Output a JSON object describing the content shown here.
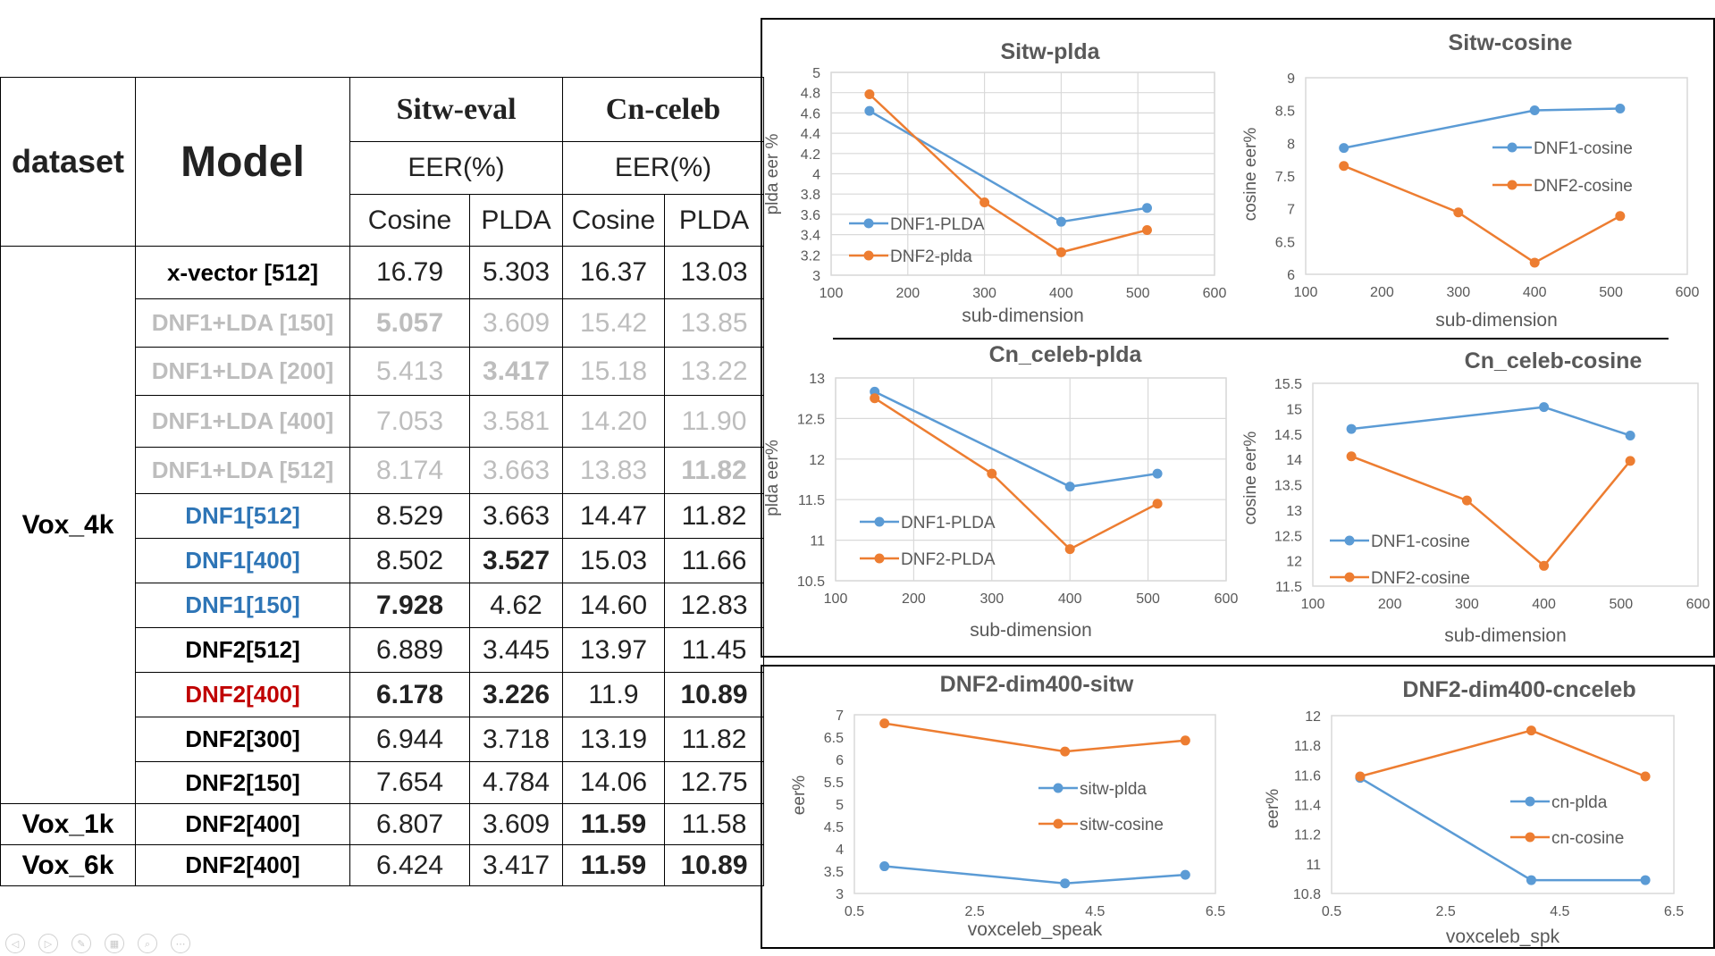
{
  "table": {
    "dataset_header": "dataset",
    "model_header": "Model",
    "groups": [
      "Sitw-eval",
      "Cn-celeb"
    ],
    "metric": "EER(%)",
    "subheaders": [
      "Cosine",
      "PLDA",
      "Cosine",
      "PLDA"
    ],
    "row_groups": [
      {
        "dataset": "Vox_4k",
        "rows": [
          {
            "model": "x-vector [512]",
            "values": [
              "16.79",
              "5.303",
              "16.37",
              "13.03"
            ],
            "style": "black",
            "bold": [
              false,
              false,
              false,
              false
            ]
          },
          {
            "model": "DNF1+LDA [150]",
            "values": [
              "5.057",
              "3.609",
              "15.42",
              "13.85"
            ],
            "style": "gray",
            "bold": [
              true,
              false,
              false,
              false
            ]
          },
          {
            "model": "DNF1+LDA [200]",
            "values": [
              "5.413",
              "3.417",
              "15.18",
              "13.22"
            ],
            "style": "gray",
            "bold": [
              false,
              true,
              false,
              false
            ]
          },
          {
            "model": "DNF1+LDA [400]",
            "values": [
              "7.053",
              "3.581",
              "14.20",
              "11.90"
            ],
            "style": "gray",
            "bold": [
              false,
              false,
              false,
              false
            ]
          },
          {
            "model": "DNF1+LDA [512]",
            "values": [
              "8.174",
              "3.663",
              "13.83",
              "11.82"
            ],
            "style": "gray",
            "bold": [
              false,
              false,
              false,
              true
            ]
          },
          {
            "model": "DNF1[512]",
            "values": [
              "8.529",
              "3.663",
              "14.47",
              "11.82"
            ],
            "style": "blue",
            "bold": [
              false,
              false,
              false,
              false
            ]
          },
          {
            "model": "DNF1[400]",
            "values": [
              "8.502",
              "3.527",
              "15.03",
              "11.66"
            ],
            "style": "blue",
            "bold": [
              false,
              true,
              false,
              false
            ]
          },
          {
            "model": "DNF1[150]",
            "values": [
              "7.928",
              "4.62",
              "14.60",
              "12.83"
            ],
            "style": "blue",
            "bold": [
              true,
              false,
              false,
              false
            ]
          },
          {
            "model": "DNF2[512]",
            "values": [
              "6.889",
              "3.445",
              "13.97",
              "11.45"
            ],
            "style": "black",
            "bold": [
              false,
              false,
              false,
              false
            ]
          },
          {
            "model": "DNF2[400]",
            "values": [
              "6.178",
              "3.226",
              "11.9",
              "10.89"
            ],
            "style": "red",
            "bold": [
              true,
              true,
              false,
              true
            ]
          },
          {
            "model": "DNF2[300]",
            "values": [
              "6.944",
              "3.718",
              "13.19",
              "11.82"
            ],
            "style": "black",
            "bold": [
              false,
              false,
              false,
              false
            ]
          },
          {
            "model": "DNF2[150]",
            "values": [
              "7.654",
              "4.784",
              "14.06",
              "12.75"
            ],
            "style": "black",
            "bold": [
              false,
              false,
              false,
              false
            ]
          }
        ]
      },
      {
        "dataset": "Vox_1k",
        "rows": [
          {
            "model": "DNF2[400]",
            "values": [
              "6.807",
              "3.609",
              "11.59",
              "11.58"
            ],
            "style": "black",
            "bold": [
              false,
              false,
              true,
              false
            ]
          }
        ]
      },
      {
        "dataset": "Vox_6k",
        "rows": [
          {
            "model": "DNF2[400]",
            "values": [
              "6.424",
              "3.417",
              "11.59",
              "10.89"
            ],
            "style": "black",
            "bold": [
              false,
              false,
              true,
              true
            ]
          }
        ]
      }
    ]
  },
  "colors": {
    "blue": "#5b9bd5",
    "orange": "#ed7d31",
    "text_blue": "#2e75b6",
    "text_red": "#c00000",
    "text_gray": "#bdbdbd"
  },
  "chart_data": [
    {
      "type": "line",
      "title": "Sitw-plda",
      "xlabel": "sub-dimension",
      "ylabel": "plda eer %",
      "xlim": [
        100,
        600
      ],
      "xticks": [
        100,
        200,
        300,
        400,
        500,
        600
      ],
      "ylim": [
        3,
        5
      ],
      "yticks": [
        "3",
        "3.2",
        "3.4",
        "3.6",
        "3.8",
        "4",
        "4.2",
        "4.4",
        "4.6",
        "4.8",
        "5"
      ],
      "grid": true,
      "legend_position": "bottom-left",
      "series": [
        {
          "name": "DNF1-PLDA",
          "color": "#5b9bd5",
          "x": [
            150,
            400,
            512
          ],
          "y": [
            4.62,
            3.527,
            3.663
          ]
        },
        {
          "name": "DNF2-plda",
          "color": "#ed7d31",
          "x": [
            150,
            300,
            400,
            512
          ],
          "y": [
            4.784,
            3.718,
            3.226,
            3.445
          ]
        }
      ]
    },
    {
      "type": "line",
      "title": "Sitw-cosine",
      "xlabel": "sub-dimension",
      "ylabel": "cosine eer%",
      "xlim": [
        100,
        600
      ],
      "xticks": [
        100,
        200,
        300,
        400,
        500,
        600
      ],
      "ylim": [
        6,
        9
      ],
      "yticks": [
        "6",
        "6.5",
        "7",
        "7.5",
        "8",
        "8.5",
        "9"
      ],
      "grid": false,
      "legend_position": "right",
      "series": [
        {
          "name": "DNF1-cosine",
          "color": "#5b9bd5",
          "x": [
            150,
            400,
            512
          ],
          "y": [
            7.928,
            8.502,
            8.529
          ]
        },
        {
          "name": "DNF2-cosine",
          "color": "#ed7d31",
          "x": [
            150,
            300,
            400,
            512
          ],
          "y": [
            7.654,
            6.944,
            6.178,
            6.889
          ]
        }
      ]
    },
    {
      "type": "line",
      "title": "Cn_celeb-plda",
      "xlabel": "sub-dimension",
      "ylabel": "plda eer%",
      "xlim": [
        100,
        600
      ],
      "xticks": [
        100,
        200,
        300,
        400,
        500,
        600
      ],
      "ylim": [
        10.5,
        13
      ],
      "yticks": [
        "10.5",
        "11",
        "11.5",
        "12",
        "12.5",
        "13"
      ],
      "grid": true,
      "legend_position": "bottom-left",
      "series": [
        {
          "name": "DNF1-PLDA",
          "color": "#5b9bd5",
          "x": [
            150,
            400,
            512
          ],
          "y": [
            12.83,
            11.66,
            11.82
          ]
        },
        {
          "name": "DNF2-PLDA",
          "color": "#ed7d31",
          "x": [
            150,
            300,
            400,
            512
          ],
          "y": [
            12.75,
            11.82,
            10.89,
            11.45
          ]
        }
      ]
    },
    {
      "type": "line",
      "title": "Cn_celeb-cosine",
      "xlabel": "sub-dimension",
      "ylabel": "cosine eer%",
      "xlim": [
        100,
        600
      ],
      "xticks": [
        100,
        200,
        300,
        400,
        500,
        600
      ],
      "ylim": [
        11.5,
        15.5
      ],
      "yticks": [
        "11.5",
        "12",
        "12.5",
        "13",
        "13.5",
        "14",
        "14.5",
        "15",
        "15.5"
      ],
      "grid": false,
      "legend_position": "bottom-left",
      "series": [
        {
          "name": "DNF1-cosine",
          "color": "#5b9bd5",
          "x": [
            150,
            400,
            512
          ],
          "y": [
            14.6,
            15.03,
            14.47
          ]
        },
        {
          "name": "DNF2-cosine",
          "color": "#ed7d31",
          "x": [
            150,
            300,
            400,
            512
          ],
          "y": [
            14.06,
            13.19,
            11.9,
            13.97
          ]
        }
      ]
    },
    {
      "type": "line",
      "title": "DNF2-dim400-sitw",
      "xlabel": "voxceleb_speak",
      "ylabel": "eer%",
      "xlim": [
        0.5,
        6.5
      ],
      "xticks": [
        "0.5",
        "2.5",
        "4.5",
        "6.5"
      ],
      "ylim": [
        3,
        7
      ],
      "yticks": [
        "3",
        "3.5",
        "4",
        "4.5",
        "5",
        "5.5",
        "6",
        "6.5",
        "7"
      ],
      "grid": false,
      "legend_position": "right",
      "series": [
        {
          "name": "sitw-plda",
          "color": "#5b9bd5",
          "x": [
            1,
            4,
            6
          ],
          "y": [
            3.609,
            3.226,
            3.417
          ]
        },
        {
          "name": "sitw-cosine",
          "color": "#ed7d31",
          "x": [
            1,
            4,
            6
          ],
          "y": [
            6.807,
            6.178,
            6.424
          ]
        }
      ]
    },
    {
      "type": "line",
      "title": "DNF2-dim400-cnceleb",
      "xlabel": "voxceleb_spk",
      "ylabel": "eer%",
      "xlim": [
        0.5,
        6.5
      ],
      "xticks": [
        "0.5",
        "2.5",
        "4.5",
        "6.5"
      ],
      "ylim": [
        10.8,
        12
      ],
      "yticks": [
        "10.8",
        "11",
        "11.2",
        "11.4",
        "11.6",
        "11.8",
        "12"
      ],
      "grid": false,
      "legend_position": "right",
      "series": [
        {
          "name": "cn-plda",
          "color": "#5b9bd5",
          "x": [
            1,
            4,
            6
          ],
          "y": [
            11.58,
            10.89,
            10.89
          ]
        },
        {
          "name": "cn-cosine",
          "color": "#ed7d31",
          "x": [
            1,
            4,
            6
          ],
          "y": [
            11.59,
            11.9,
            11.59
          ]
        }
      ]
    }
  ],
  "controls": [
    {
      "name": "prev-slide-icon",
      "glyph": "◁"
    },
    {
      "name": "next-slide-icon",
      "glyph": "▷"
    },
    {
      "name": "pen-icon",
      "glyph": "✎"
    },
    {
      "name": "slides-grid-icon",
      "glyph": "▦"
    },
    {
      "name": "zoom-icon",
      "glyph": "⌕"
    },
    {
      "name": "more-options-icon",
      "glyph": "⋯"
    }
  ]
}
